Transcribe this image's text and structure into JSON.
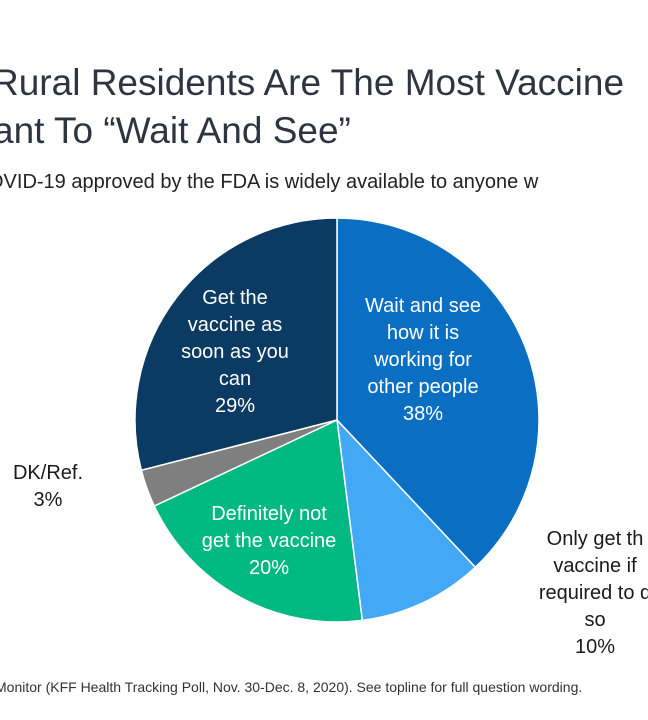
{
  "header": {
    "title_line1": "Rural Residents Are The Most Vaccine",
    "title_line2": "ant To “Wait And See”",
    "subtitle": "OVID-19 approved by the FDA is widely available to anyone w"
  },
  "footnote": "Monitor (KFF Health Tracking Poll, Nov. 30-Dec. 8, 2020). See topline for full question wording.",
  "chart_data": {
    "type": "pie",
    "series": [
      {
        "name": "",
        "values": [
          38,
          10,
          20,
          3,
          29
        ]
      }
    ],
    "categories": [
      "Wait and see how it is working for other people",
      "Only get the vaccine if required to do so",
      "Definitely not get the vaccine",
      "DK/Ref.",
      "Get the vaccine as soon as you can"
    ],
    "slices": [
      {
        "lines": [
          "Wait and see",
          "how it is",
          "working for",
          "other people"
        ],
        "pct_text": "38%",
        "value": 38,
        "color": "#0a6fc2"
      },
      {
        "lines": [
          "Only get th",
          "vaccine if",
          "required to d",
          "so"
        ],
        "pct_text": "10%",
        "value": 10,
        "color": "#43a8f5"
      },
      {
        "lines": [
          "Definitely not",
          "get the vaccine"
        ],
        "pct_text": "20%",
        "value": 20,
        "color": "#00b882"
      },
      {
        "lines": [
          "DK/Ref."
        ],
        "pct_text": "3%",
        "value": 3,
        "color": "#7f7f7f"
      },
      {
        "lines": [
          "Get the",
          "vaccine as",
          "soon as you",
          "can"
        ],
        "pct_text": "29%",
        "value": 29,
        "color": "#0b3a63"
      }
    ],
    "start_angle_deg": 0,
    "direction": "clockwise"
  }
}
